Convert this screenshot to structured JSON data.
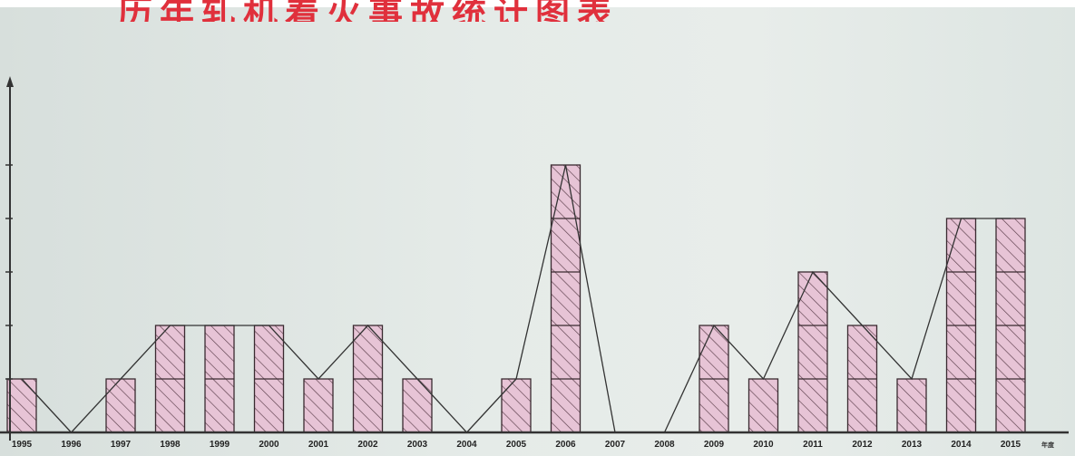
{
  "title": "历年轧机着火事故统计图表",
  "colors": {
    "bar_fill": "#e7c4d6",
    "hatch": "#5a3d4a",
    "trend_line": "#333333",
    "title": "#e0303c"
  },
  "chart_data": {
    "type": "bar",
    "title": "历年轧机着火事故统计图表",
    "xlabel": "",
    "ylabel": "",
    "x_unit_label": "年度",
    "categories": [
      "1995",
      "1996",
      "1997",
      "1998",
      "1999",
      "2000",
      "2001",
      "2002",
      "2003",
      "2004",
      "2005",
      "2006",
      "2007",
      "2008",
      "2009",
      "2010",
      "2011",
      "2012",
      "2013",
      "2014",
      "2015"
    ],
    "values": [
      1,
      0,
      1,
      2,
      2,
      2,
      1,
      2,
      1,
      0,
      1,
      5,
      0,
      0,
      2,
      1,
      3,
      2,
      1,
      4,
      4
    ],
    "ylim": [
      0,
      6.5
    ],
    "grid": false,
    "legend": "none",
    "trend_line": true
  }
}
